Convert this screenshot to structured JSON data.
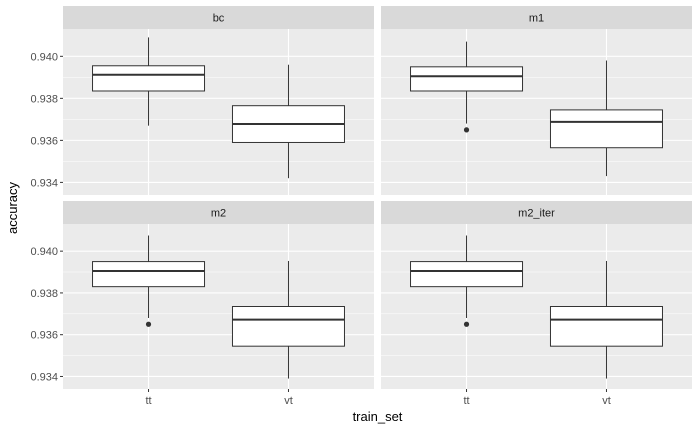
{
  "chart_data": {
    "type": "box",
    "xlabel": "train_set",
    "ylabel": "accuracy",
    "categories": [
      "tt",
      "vt"
    ],
    "y_ticks": [
      0.934,
      0.936,
      0.938,
      0.94
    ],
    "y_tick_labels": [
      "0.934",
      "0.936",
      "0.938",
      "0.940"
    ],
    "grid": true,
    "legend": "none",
    "panel_bg": "#EBEBEB",
    "strip_bg": "#D9D9D9",
    "facets": [
      {
        "label": "bc",
        "ylim": [
          0.9334,
          0.9413
        ],
        "boxes": [
          {
            "category": "tt",
            "lower_whisker": 0.9367,
            "q1": 0.93835,
            "median": 0.93912,
            "q3": 0.93955,
            "upper_whisker": 0.9409,
            "outliers": []
          },
          {
            "category": "vt",
            "lower_whisker": 0.9342,
            "q1": 0.9359,
            "median": 0.93678,
            "q3": 0.93765,
            "upper_whisker": 0.9396,
            "outliers": []
          }
        ]
      },
      {
        "label": "m1",
        "ylim": [
          0.9334,
          0.9413
        ],
        "boxes": [
          {
            "category": "tt",
            "lower_whisker": 0.9368,
            "q1": 0.93835,
            "median": 0.93905,
            "q3": 0.9395,
            "upper_whisker": 0.9407,
            "outliers": [
              0.9365
            ]
          },
          {
            "category": "vt",
            "lower_whisker": 0.9343,
            "q1": 0.93565,
            "median": 0.93688,
            "q3": 0.93745,
            "upper_whisker": 0.9398,
            "outliers": []
          }
        ]
      },
      {
        "label": "m2",
        "ylim": [
          0.9334,
          0.9413
        ],
        "boxes": [
          {
            "category": "tt",
            "lower_whisker": 0.9368,
            "q1": 0.9383,
            "median": 0.93905,
            "q3": 0.9395,
            "upper_whisker": 0.94075,
            "outliers": [
              0.9365
            ]
          },
          {
            "category": "vt",
            "lower_whisker": 0.9339,
            "q1": 0.93545,
            "median": 0.93672,
            "q3": 0.93735,
            "upper_whisker": 0.93953,
            "outliers": []
          }
        ]
      },
      {
        "label": "m2_iter",
        "ylim": [
          0.9334,
          0.9413
        ],
        "boxes": [
          {
            "category": "tt",
            "lower_whisker": 0.9368,
            "q1": 0.9383,
            "median": 0.93905,
            "q3": 0.9395,
            "upper_whisker": 0.94075,
            "outliers": [
              0.9365
            ]
          },
          {
            "category": "vt",
            "lower_whisker": 0.9339,
            "q1": 0.93545,
            "median": 0.93672,
            "q3": 0.93735,
            "upper_whisker": 0.93953,
            "outliers": []
          }
        ]
      }
    ]
  }
}
